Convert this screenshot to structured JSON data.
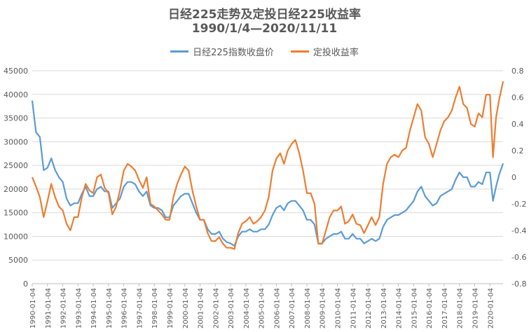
{
  "chart_data": {
    "type": "line",
    "title": "日经225走势及定投日经225收益率",
    "subtitle": "1990/1/4—2020/11/11",
    "legend": [
      "日经225指数收盘价",
      "定投收益率"
    ],
    "colors": {
      "nikkei": "#5B9BD5",
      "return": "#ED7D31",
      "grid": "#d9d9d9",
      "axis": "#bfbfbf",
      "text": "#595959"
    },
    "y_left": {
      "min": 0,
      "max": 45000,
      "ticks": [
        "0",
        "5000",
        "10000",
        "15000",
        "20000",
        "25000",
        "30000",
        "35000",
        "40000",
        "45000"
      ]
    },
    "y_right": {
      "min": -0.8,
      "max": 0.8,
      "ticks": [
        "-0.8",
        "-0.6",
        "-0.4",
        "-0.2",
        "0",
        "0.2",
        "0.4",
        "0.6",
        "0.8"
      ]
    },
    "x_labels": [
      "1990-01-04",
      "1991-01-04",
      "1992-01-04",
      "1993-01-04",
      "1994-01-04",
      "1995-01-04",
      "1996-01-04",
      "1997-01-04",
      "1998-01-04",
      "1999-01-04",
      "2000-01-04",
      "2001-01-04",
      "2002-01-04",
      "2003-01-04",
      "2004-01-04",
      "2005-01-04",
      "2006-01-04",
      "2007-01-04",
      "2008-01-04",
      "2009-01-04",
      "2010-01-04",
      "2011-01-04",
      "2012-01-04",
      "2013-01-04",
      "2014-01-04",
      "2015-01-04",
      "2016-01-04",
      "2017-01-04",
      "2018-01-04",
      "2019-01-04",
      "2020-01-04"
    ],
    "series": [
      {
        "name": "日经225指数收盘价",
        "axis": "left",
        "x": [
          1990.0,
          1990.25,
          1990.5,
          1990.75,
          1991.0,
          1991.25,
          1991.5,
          1991.75,
          1992.0,
          1992.25,
          1992.5,
          1992.75,
          1993.0,
          1993.25,
          1993.5,
          1993.75,
          1994.0,
          1994.25,
          1994.5,
          1994.75,
          1995.0,
          1995.25,
          1995.5,
          1995.75,
          1996.0,
          1996.25,
          1996.5,
          1996.75,
          1997.0,
          1997.25,
          1997.5,
          1997.75,
          1998.0,
          1998.25,
          1998.5,
          1998.75,
          1999.0,
          1999.25,
          1999.5,
          1999.75,
          2000.0,
          2000.25,
          2000.5,
          2000.75,
          2001.0,
          2001.25,
          2001.5,
          2001.75,
          2002.0,
          2002.25,
          2002.5,
          2002.75,
          2003.0,
          2003.25,
          2003.5,
          2003.75,
          2004.0,
          2004.25,
          2004.5,
          2004.75,
          2005.0,
          2005.25,
          2005.5,
          2005.75,
          2006.0,
          2006.25,
          2006.5,
          2006.75,
          2007.0,
          2007.25,
          2007.5,
          2007.75,
          2008.0,
          2008.25,
          2008.5,
          2008.75,
          2009.0,
          2009.25,
          2009.5,
          2009.75,
          2010.0,
          2010.25,
          2010.5,
          2010.75,
          2011.0,
          2011.25,
          2011.5,
          2011.75,
          2012.0,
          2012.25,
          2012.5,
          2012.75,
          2013.0,
          2013.25,
          2013.5,
          2013.75,
          2014.0,
          2014.25,
          2014.5,
          2014.75,
          2015.0,
          2015.25,
          2015.5,
          2015.75,
          2016.0,
          2016.25,
          2016.5,
          2016.75,
          2017.0,
          2017.25,
          2017.5,
          2017.75,
          2018.0,
          2018.25,
          2018.5,
          2018.75,
          2019.0,
          2019.25,
          2019.5,
          2019.75,
          2020.0,
          2020.2,
          2020.4,
          2020.6,
          2020.86
        ],
        "values": [
          38700,
          32000,
          31000,
          24000,
          24500,
          26500,
          24000,
          22500,
          21500,
          18000,
          16500,
          17000,
          17000,
          19000,
          20500,
          18500,
          18500,
          20000,
          20500,
          19500,
          19500,
          16000,
          17000,
          18000,
          20500,
          21500,
          21500,
          21000,
          19500,
          18500,
          19500,
          16500,
          16000,
          16000,
          15500,
          14000,
          14000,
          16500,
          17500,
          18500,
          19000,
          19000,
          17000,
          15000,
          13500,
          13500,
          11500,
          10500,
          10500,
          11000,
          9500,
          8800,
          8500,
          8000,
          10000,
          11000,
          11000,
          11500,
          11000,
          11000,
          11500,
          11500,
          12500,
          14500,
          16000,
          16500,
          15500,
          17000,
          17500,
          17500,
          16500,
          15500,
          13500,
          13500,
          12500,
          8500,
          8500,
          9500,
          10000,
          10500,
          10500,
          11000,
          9500,
          9500,
          10500,
          9500,
          9500,
          8500,
          9000,
          9500,
          9000,
          9500,
          12000,
          13500,
          14000,
          14500,
          14500,
          15000,
          15500,
          16500,
          17500,
          19500,
          20500,
          18500,
          17500,
          16500,
          17000,
          18500,
          19000,
          19500,
          20000,
          22000,
          23500,
          22500,
          22500,
          20500,
          20500,
          21500,
          21000,
          23500,
          23500,
          17500,
          20500,
          23000,
          25400
        ]
      },
      {
        "name": "定投收益率",
        "axis": "right",
        "x": [
          1990.0,
          1990.25,
          1990.5,
          1990.75,
          1991.0,
          1991.25,
          1991.5,
          1991.75,
          1992.0,
          1992.25,
          1992.5,
          1992.75,
          1993.0,
          1993.25,
          1993.5,
          1993.75,
          1994.0,
          1994.25,
          1994.5,
          1994.75,
          1995.0,
          1995.25,
          1995.5,
          1995.75,
          1996.0,
          1996.25,
          1996.5,
          1996.75,
          1997.0,
          1997.25,
          1997.5,
          1997.75,
          1998.0,
          1998.25,
          1998.5,
          1998.75,
          1999.0,
          1999.25,
          1999.5,
          1999.75,
          2000.0,
          2000.25,
          2000.5,
          2000.75,
          2001.0,
          2001.25,
          2001.5,
          2001.75,
          2002.0,
          2002.25,
          2002.5,
          2002.75,
          2003.0,
          2003.25,
          2003.5,
          2003.75,
          2004.0,
          2004.25,
          2004.5,
          2004.75,
          2005.0,
          2005.25,
          2005.5,
          2005.75,
          2006.0,
          2006.25,
          2006.5,
          2006.75,
          2007.0,
          2007.25,
          2007.5,
          2007.75,
          2008.0,
          2008.25,
          2008.5,
          2008.75,
          2009.0,
          2009.25,
          2009.5,
          2009.75,
          2010.0,
          2010.25,
          2010.5,
          2010.75,
          2011.0,
          2011.25,
          2011.5,
          2011.75,
          2012.0,
          2012.25,
          2012.5,
          2012.75,
          2013.0,
          2013.25,
          2013.5,
          2013.75,
          2014.0,
          2014.25,
          2014.5,
          2014.75,
          2015.0,
          2015.25,
          2015.5,
          2015.75,
          2016.0,
          2016.25,
          2016.5,
          2016.75,
          2017.0,
          2017.25,
          2017.5,
          2017.75,
          2018.0,
          2018.25,
          2018.5,
          2018.75,
          2019.0,
          2019.25,
          2019.5,
          2019.75,
          2020.0,
          2020.2,
          2020.4,
          2020.6,
          2020.86
        ],
        "values": [
          0.0,
          -0.07,
          -0.15,
          -0.3,
          -0.18,
          -0.05,
          -0.15,
          -0.22,
          -0.25,
          -0.35,
          -0.4,
          -0.3,
          -0.3,
          -0.15,
          -0.05,
          -0.1,
          -0.12,
          0.0,
          0.02,
          -0.08,
          -0.12,
          -0.28,
          -0.22,
          -0.1,
          0.05,
          0.1,
          0.08,
          0.05,
          -0.02,
          -0.08,
          0.0,
          -0.2,
          -0.22,
          -0.25,
          -0.28,
          -0.32,
          -0.32,
          -0.15,
          -0.05,
          0.02,
          0.08,
          0.05,
          -0.1,
          -0.22,
          -0.32,
          -0.32,
          -0.42,
          -0.48,
          -0.48,
          -0.45,
          -0.5,
          -0.53,
          -0.53,
          -0.54,
          -0.42,
          -0.35,
          -0.33,
          -0.3,
          -0.35,
          -0.33,
          -0.3,
          -0.25,
          -0.15,
          0.05,
          0.14,
          0.18,
          0.1,
          0.2,
          0.25,
          0.28,
          0.18,
          0.05,
          -0.12,
          -0.12,
          -0.2,
          -0.5,
          -0.5,
          -0.4,
          -0.3,
          -0.25,
          -0.25,
          -0.22,
          -0.35,
          -0.33,
          -0.28,
          -0.35,
          -0.36,
          -0.42,
          -0.36,
          -0.3,
          -0.36,
          -0.3,
          -0.05,
          0.1,
          0.15,
          0.17,
          0.15,
          0.2,
          0.22,
          0.35,
          0.45,
          0.55,
          0.5,
          0.3,
          0.25,
          0.15,
          0.25,
          0.35,
          0.42,
          0.45,
          0.5,
          0.6,
          0.68,
          0.55,
          0.52,
          0.4,
          0.38,
          0.48,
          0.45,
          0.62,
          0.62,
          0.15,
          0.45,
          0.58,
          0.72
        ]
      }
    ]
  }
}
